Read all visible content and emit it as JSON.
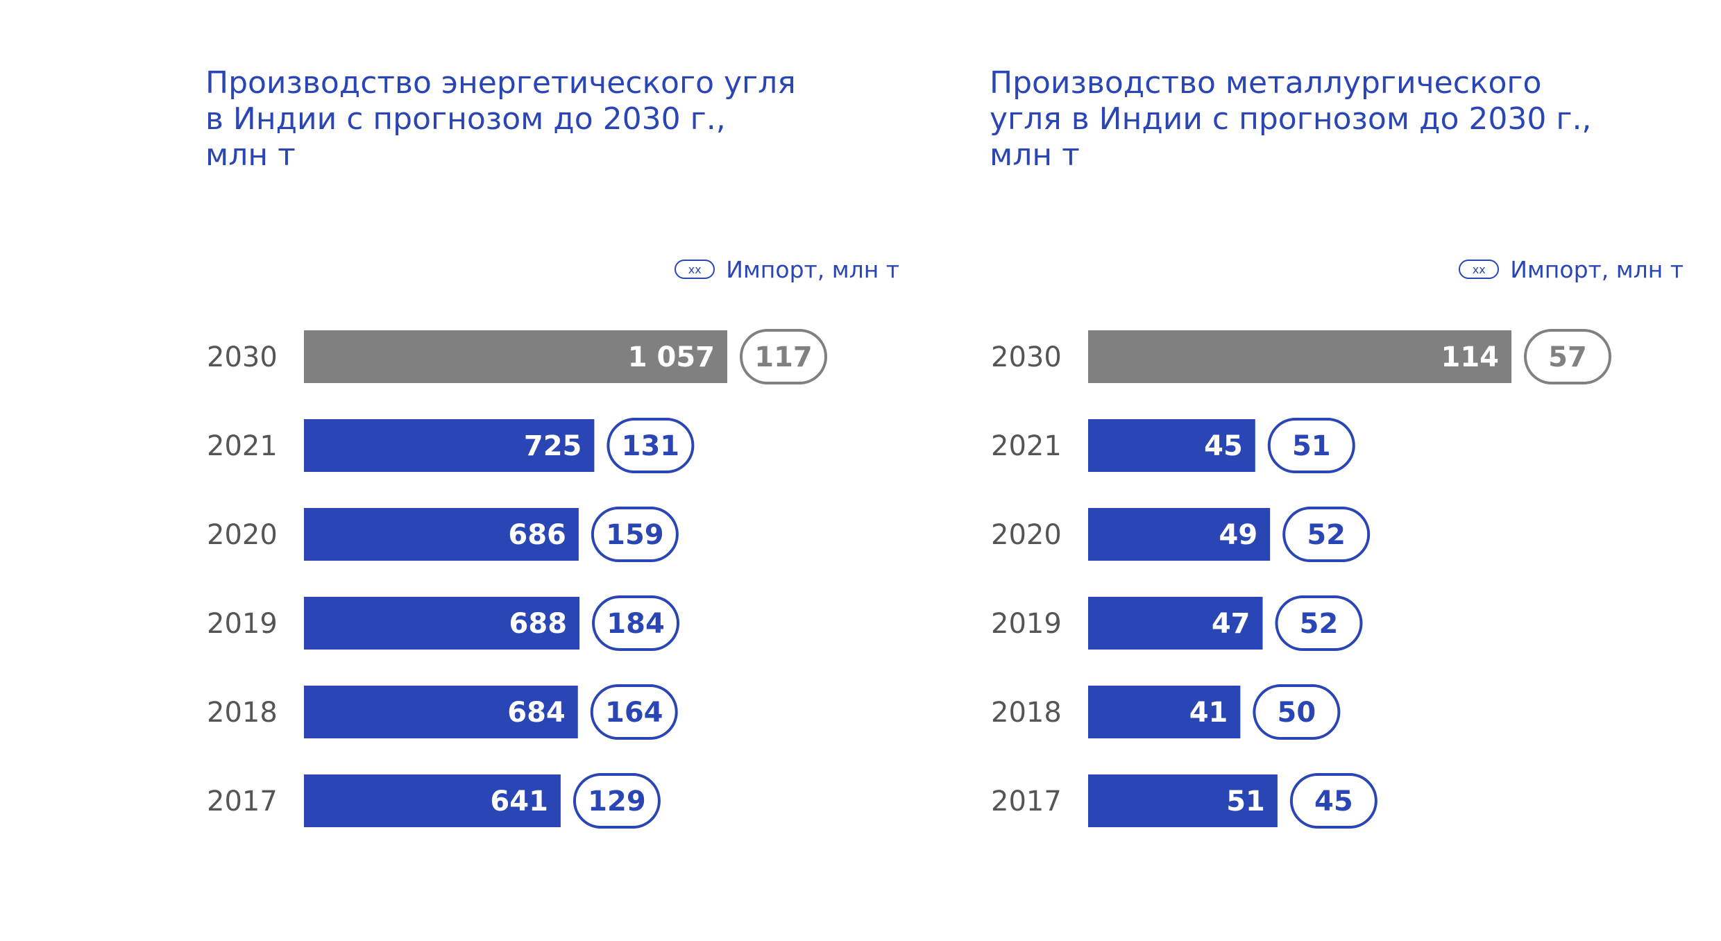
{
  "chart_data": [
    {
      "type": "bar",
      "orientation": "horizontal",
      "title": [
        "Производство энергетического угля",
        "в Индии с прогнозом до 2030 г.,",
        "млн т"
      ],
      "legend": {
        "symbol": "xx",
        "label": "Импорт, млн т",
        "placement": "top-right"
      },
      "categories": [
        "2030",
        "2021",
        "2020",
        "2019",
        "2018",
        "2017"
      ],
      "series": [
        {
          "role": "bars",
          "values": [
            1057,
            725,
            686,
            688,
            684,
            641
          ],
          "labels": [
            "1 057",
            "725",
            "686",
            "688",
            "684",
            "641"
          ]
        },
        {
          "name": "Импорт, млн т",
          "role": "pills",
          "values": [
            117,
            131,
            159,
            184,
            164,
            129
          ],
          "labels": [
            "117",
            "131",
            "159",
            "184",
            "164",
            "129"
          ]
        }
      ],
      "highlight": {
        "category": "2030",
        "color": "#808080"
      },
      "bar_color": "#2a46b4",
      "grid": false
    },
    {
      "type": "bar",
      "orientation": "horizontal",
      "title": [
        "Производство металлургического",
        "угля в Индии с прогнозом до 2030 г.,",
        "млн т"
      ],
      "legend": {
        "symbol": "xx",
        "label": "Импорт, млн т",
        "placement": "top-right"
      },
      "categories": [
        "2030",
        "2021",
        "2020",
        "2019",
        "2018",
        "2017"
      ],
      "series": [
        {
          "role": "bars",
          "values": [
            114,
            45,
            49,
            47,
            41,
            51
          ],
          "labels": [
            "114",
            "45",
            "49",
            "47",
            "41",
            "51"
          ]
        },
        {
          "name": "Импорт, млн т",
          "role": "pills",
          "values": [
            57,
            51,
            52,
            52,
            50,
            45
          ],
          "labels": [
            "57",
            "51",
            "52",
            "52",
            "50",
            "45"
          ]
        }
      ],
      "highlight": {
        "category": "2030",
        "color": "#808080"
      },
      "bar_color": "#2a46b4",
      "grid": false
    }
  ]
}
